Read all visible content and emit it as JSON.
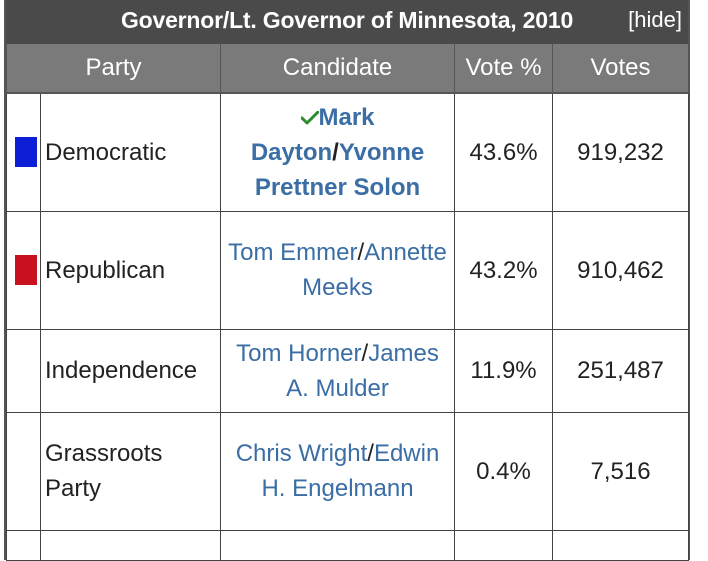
{
  "box": {
    "title": "Governor/Lt. Governor of Minnesota, 2010",
    "hide_label": "[hide]"
  },
  "table": {
    "headers": [
      "Party",
      "Candidate",
      "Vote %",
      "Votes"
    ],
    "rows": [
      {
        "color": "#0c1fd6",
        "party": "Democratic",
        "candidate1": "Mark Dayton",
        "separator": "/",
        "candidate2": "Yvonne Prettner Solon",
        "winner": true,
        "vote_pct": "43.6%",
        "votes": "919,232"
      },
      {
        "color": "#c8101e",
        "party": "Republican",
        "candidate1": "Tom Emmer",
        "separator": "/",
        "candidate2": "Annette Meeks",
        "winner": false,
        "vote_pct": "43.2%",
        "votes": "910,462"
      },
      {
        "color": "",
        "party": "Independence",
        "candidate1": "Tom Horner",
        "separator": "/",
        "candidate2": "James A. Mulder",
        "winner": false,
        "vote_pct": "11.9%",
        "votes": "251,487"
      },
      {
        "color": "",
        "party": "Grassroots Party",
        "candidate1": "Chris Wright",
        "separator": "/",
        "candidate2": "Edwin H. Engelmann",
        "winner": false,
        "vote_pct": "0.4%",
        "votes": "7,516"
      }
    ]
  },
  "colors": {
    "title_bg": "#4a4a4a",
    "header_bg": "#7a7a7a",
    "link": "#3a6ea5",
    "check": "#2e8b2e"
  }
}
